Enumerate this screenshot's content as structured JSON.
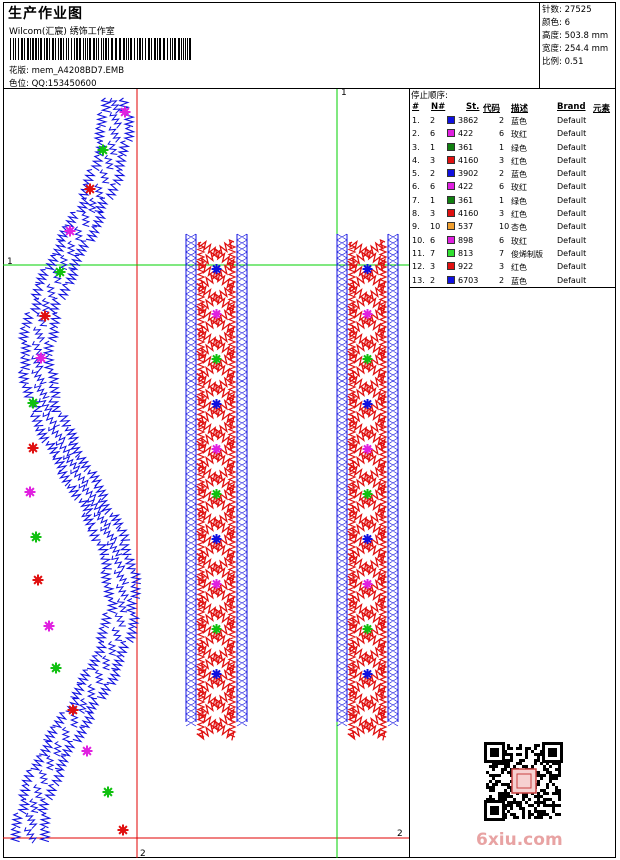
{
  "header": {
    "title": "生产作业图",
    "company": "Wilcom(汇宸) 绣饰工作室",
    "design_label": "花版: mem_A4208BD7.EMB",
    "color_label": "色位: QQ:153450600"
  },
  "stats": {
    "stitches": "针数: 27525",
    "colors": "颜色: 6",
    "height": "高度: 503.8 mm",
    "width": "宽度: 254.4 mm",
    "scale": "比例: 0.51"
  },
  "stop_sequence": {
    "title": "停止顺序:",
    "headers": [
      "#",
      "N#",
      "St.",
      "代码",
      "描述",
      "Brand",
      "元素"
    ],
    "rows": [
      {
        "idx": "1.",
        "n": "2",
        "color": "#1010e0",
        "st": "3862",
        "code": "2",
        "desc": "蓝色",
        "brand": "Default"
      },
      {
        "idx": "2.",
        "n": "6",
        "color": "#e020e0",
        "st": "422",
        "code": "6",
        "desc": "玫红",
        "brand": "Default"
      },
      {
        "idx": "3.",
        "n": "1",
        "color": "#108010",
        "st": "361",
        "code": "1",
        "desc": "绿色",
        "brand": "Default"
      },
      {
        "idx": "4.",
        "n": "3",
        "color": "#e01010",
        "st": "4160",
        "code": "3",
        "desc": "红色",
        "brand": "Default"
      },
      {
        "idx": "5.",
        "n": "2",
        "color": "#1010e0",
        "st": "3902",
        "code": "2",
        "desc": "蓝色",
        "brand": "Default"
      },
      {
        "idx": "6.",
        "n": "6",
        "color": "#e020e0",
        "st": "422",
        "code": "6",
        "desc": "玫红",
        "brand": "Default"
      },
      {
        "idx": "7.",
        "n": "1",
        "color": "#108010",
        "st": "361",
        "code": "1",
        "desc": "绿色",
        "brand": "Default"
      },
      {
        "idx": "8.",
        "n": "3",
        "color": "#e01010",
        "st": "4160",
        "code": "3",
        "desc": "红色",
        "brand": "Default"
      },
      {
        "idx": "9.",
        "n": "10",
        "color": "#f0a030",
        "st": "537",
        "code": "10",
        "desc": "杏色",
        "brand": "Default"
      },
      {
        "idx": "10.",
        "n": "6",
        "color": "#e020e0",
        "st": "898",
        "code": "6",
        "desc": "玫红",
        "brand": "Default"
      },
      {
        "idx": "11.",
        "n": "7",
        "color": "#30e030",
        "st": "813",
        "code": "7",
        "desc": "俊烯制版",
        "brand": "Default"
      },
      {
        "idx": "12.",
        "n": "3",
        "color": "#e01010",
        "st": "922",
        "code": "3",
        "desc": "红色",
        "brand": "Default"
      },
      {
        "idx": "13.",
        "n": "2",
        "color": "#1010e0",
        "st": "6703",
        "code": "2",
        "desc": "蓝色",
        "brand": "Default"
      }
    ]
  },
  "guides": {
    "v1_label": "1",
    "v2_label": "2",
    "h1_label": "1",
    "h2_label": "2",
    "top_label": "1"
  },
  "watermark": "6xiu.com",
  "palette": {
    "blue": "#1010e0",
    "red": "#e01010",
    "magenta": "#e020e0",
    "green": "#10c010",
    "guide_red": "#e00000",
    "guide_green": "#00d000"
  }
}
